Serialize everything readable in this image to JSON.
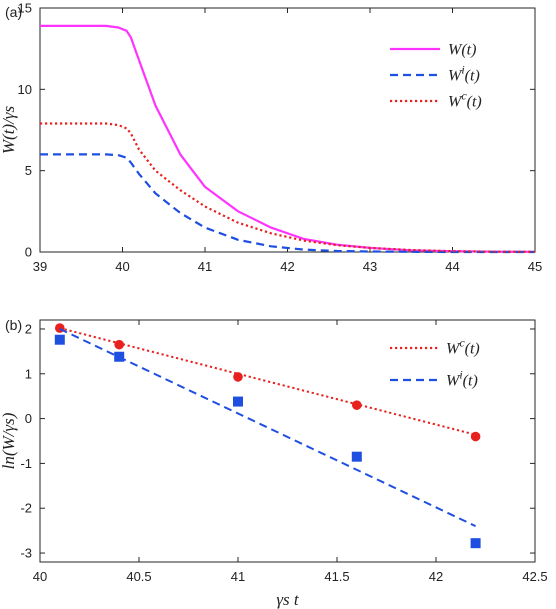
{
  "chart_data": [
    {
      "panel_label": "(a)",
      "type": "line",
      "xlim": [
        39,
        45
      ],
      "ylim": [
        0,
        15
      ],
      "xticks": [
        39,
        40,
        41,
        42,
        43,
        44,
        45
      ],
      "yticks": [
        0,
        5,
        10,
        15
      ],
      "xticklabels": [
        "39",
        "40",
        "41",
        "42",
        "43",
        "44",
        "45"
      ],
      "yticklabels": [
        "0",
        "5",
        "10",
        "15"
      ],
      "ylabel": "W(t)/γs",
      "xlabel": "",
      "grid": false,
      "legend_position": "top-right",
      "series": [
        {
          "name": "W(t)",
          "color": "#ff33ff",
          "style": "solid",
          "x": [
            39.0,
            39.5,
            39.8,
            39.95,
            40.05,
            40.1,
            40.2,
            40.4,
            40.7,
            41.0,
            41.4,
            41.8,
            42.2,
            42.6,
            43.0,
            43.5,
            44.0,
            44.5,
            45.0
          ],
          "y": [
            13.9,
            13.9,
            13.9,
            13.8,
            13.6,
            13.2,
            11.8,
            9.0,
            6.0,
            4.0,
            2.5,
            1.5,
            0.8,
            0.45,
            0.25,
            0.1,
            0.05,
            0.02,
            0.01
          ]
        },
        {
          "name": "Wi(t)",
          "color": "#1f4fe0",
          "style": "dashed",
          "x": [
            39.0,
            39.5,
            39.8,
            39.95,
            40.05,
            40.1,
            40.2,
            40.4,
            40.7,
            41.0,
            41.4,
            41.8,
            42.2,
            42.6,
            43.0,
            43.5,
            44.0,
            44.5,
            45.0
          ],
          "y": [
            6.0,
            6.0,
            6.0,
            5.95,
            5.8,
            5.5,
            4.8,
            3.6,
            2.4,
            1.5,
            0.75,
            0.35,
            0.15,
            0.06,
            0.03,
            0.01,
            0.0,
            0.0,
            0.0
          ]
        },
        {
          "name": "Wc(t)",
          "color": "#e8201e",
          "style": "dotted",
          "x": [
            39.0,
            39.5,
            39.8,
            39.95,
            40.05,
            40.1,
            40.2,
            40.4,
            40.7,
            41.0,
            41.4,
            41.8,
            42.2,
            42.6,
            43.0,
            43.5,
            44.0,
            44.5,
            45.0
          ],
          "y": [
            7.9,
            7.9,
            7.9,
            7.8,
            7.6,
            7.3,
            6.3,
            5.0,
            3.8,
            2.8,
            1.8,
            1.15,
            0.7,
            0.42,
            0.25,
            0.12,
            0.05,
            0.02,
            0.01
          ]
        }
      ],
      "legend": [
        {
          "base": "W",
          "sup": "",
          "arg": "(t)",
          "color": "#ff33ff",
          "style": "solid"
        },
        {
          "base": "W",
          "sup": "i",
          "arg": "(t)",
          "color": "#1f4fe0",
          "style": "dashed"
        },
        {
          "base": "W",
          "sup": "c",
          "arg": "(t)",
          "color": "#e8201e",
          "style": "dotted"
        }
      ]
    },
    {
      "panel_label": "(b)",
      "type": "scatter",
      "xlim": [
        40,
        42.5
      ],
      "ylim": [
        -3.2,
        2.2
      ],
      "xticks": [
        40,
        40.5,
        41,
        41.5,
        42,
        42.5
      ],
      "yticks": [
        -3,
        -2,
        -1,
        0,
        1,
        2
      ],
      "xticklabels": [
        "40",
        "40.5",
        "41",
        "41.5",
        "42",
        "42.5"
      ],
      "yticklabels": [
        "-3",
        "-2",
        "-1",
        "0",
        "1",
        "2"
      ],
      "ylabel": "ln(W/γs)",
      "xlabel": "γs t",
      "grid": false,
      "legend_position": "top-right",
      "series": [
        {
          "name": "Wc(t)",
          "color": "#e8201e",
          "marker": "circle",
          "x": [
            40.1,
            40.4,
            41.0,
            41.6,
            42.2
          ],
          "y": [
            2.02,
            1.65,
            0.93,
            0.3,
            -0.4
          ],
          "fit": {
            "x": [
              40.1,
              42.2
            ],
            "y": [
              2.02,
              -0.36
            ],
            "style": "dotted"
          }
        },
        {
          "name": "Wi(t)",
          "color": "#1f4fe0",
          "marker": "square",
          "x": [
            40.1,
            40.4,
            41.0,
            41.6,
            42.2
          ],
          "y": [
            1.76,
            1.38,
            0.38,
            -0.85,
            -2.78
          ],
          "fit": {
            "x": [
              40.1,
              42.2
            ],
            "y": [
              2.0,
              -2.4
            ],
            "style": "dashed"
          }
        }
      ],
      "legend": [
        {
          "base": "W",
          "sup": "c",
          "arg": "(t)",
          "color": "#e8201e",
          "style": "dotted"
        },
        {
          "base": "W",
          "sup": "i",
          "arg": "(t)",
          "color": "#1f4fe0",
          "style": "dashed"
        }
      ]
    }
  ]
}
